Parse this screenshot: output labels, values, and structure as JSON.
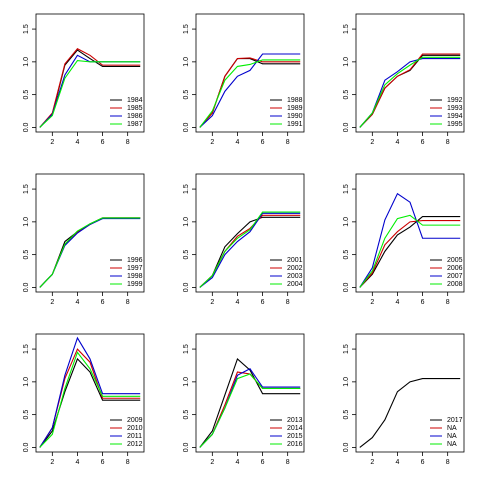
{
  "chart_data": [
    {
      "type": "line",
      "x": [
        1,
        2,
        3,
        4,
        5,
        6,
        7,
        8,
        9
      ],
      "xlim": [
        0.7,
        9.3
      ],
      "xticks": [
        2,
        4,
        6,
        8
      ],
      "ylim": [
        -0.07,
        1.73
      ],
      "yticks": [
        {
          "value": 0,
          "label": "0.0"
        },
        0.5,
        {
          "value": 1,
          "label": "1.0"
        },
        1.5
      ],
      "legend": "bottom-right",
      "series": [
        {
          "name": "1984",
          "color": "#000000",
          "values": [
            0,
            0.2,
            0.95,
            1.18,
            1.05,
            0.93,
            0.93,
            0.93,
            0.93
          ]
        },
        {
          "name": "1985",
          "color": "#cc0000",
          "values": [
            0,
            0.22,
            0.97,
            1.2,
            1.1,
            0.95,
            0.95,
            0.95,
            0.95
          ]
        },
        {
          "name": "1986",
          "color": "#0000cc",
          "values": [
            0,
            0.2,
            0.8,
            1.1,
            1.0,
            1.0,
            1.0,
            1.0,
            1.0
          ]
        },
        {
          "name": "1987",
          "color": "#00ee00",
          "values": [
            0,
            0.18,
            0.75,
            1.02,
            1.0,
            1.0,
            1.0,
            1.0,
            1.0
          ]
        }
      ]
    },
    {
      "type": "line",
      "x": [
        1,
        2,
        3,
        4,
        5,
        6,
        7,
        8,
        9
      ],
      "xlim": [
        0.7,
        9.3
      ],
      "xticks": [
        2,
        4,
        6,
        8
      ],
      "ylim": [
        -0.07,
        1.73
      ],
      "yticks": [
        {
          "value": 0,
          "label": "0.0"
        },
        0.5,
        {
          "value": 1,
          "label": "1.0"
        },
        1.5
      ],
      "legend": "bottom-right",
      "series": [
        {
          "name": "1988",
          "color": "#000000",
          "values": [
            0,
            0.22,
            0.78,
            1.05,
            1.05,
            0.97,
            0.97,
            0.97,
            0.97
          ]
        },
        {
          "name": "1989",
          "color": "#cc0000",
          "values": [
            0,
            0.22,
            0.78,
            1.05,
            1.06,
            1.0,
            1.0,
            1.0,
            1.0
          ]
        },
        {
          "name": "1990",
          "color": "#0000cc",
          "values": [
            0,
            0.18,
            0.55,
            0.78,
            0.87,
            1.12,
            1.12,
            1.12,
            1.12
          ]
        },
        {
          "name": "1991",
          "color": "#00ee00",
          "values": [
            0,
            0.25,
            0.72,
            0.93,
            0.96,
            1.03,
            1.03,
            1.03,
            1.03
          ]
        }
      ]
    },
    {
      "type": "line",
      "x": [
        1,
        2,
        3,
        4,
        5,
        6,
        7,
        8,
        9
      ],
      "xlim": [
        0.7,
        9.3
      ],
      "xticks": [
        2,
        4,
        6,
        8
      ],
      "ylim": [
        -0.07,
        1.73
      ],
      "yticks": [
        {
          "value": 0,
          "label": "0.0"
        },
        0.5,
        {
          "value": 1,
          "label": "1.0"
        },
        1.5
      ],
      "legend": "bottom-right",
      "series": [
        {
          "name": "1992",
          "color": "#000000",
          "values": [
            0,
            0.2,
            0.6,
            0.78,
            0.87,
            1.1,
            1.1,
            1.1,
            1.1
          ]
        },
        {
          "name": "1993",
          "color": "#cc0000",
          "values": [
            0,
            0.2,
            0.6,
            0.78,
            0.88,
            1.12,
            1.12,
            1.12,
            1.12
          ]
        },
        {
          "name": "1994",
          "color": "#0000cc",
          "values": [
            0,
            0.22,
            0.72,
            0.85,
            1.0,
            1.05,
            1.05,
            1.05,
            1.05
          ]
        },
        {
          "name": "1995",
          "color": "#00ee00",
          "values": [
            0,
            0.22,
            0.65,
            0.82,
            0.95,
            1.07,
            1.07,
            1.07,
            1.07
          ]
        }
      ]
    },
    {
      "type": "line",
      "x": [
        1,
        2,
        3,
        4,
        5,
        6,
        7,
        8,
        9
      ],
      "xlim": [
        0.7,
        9.3
      ],
      "xticks": [
        2,
        4,
        6,
        8
      ],
      "ylim": [
        -0.07,
        1.73
      ],
      "yticks": [
        {
          "value": 0,
          "label": "0.0"
        },
        0.5,
        {
          "value": 1,
          "label": "1.0"
        },
        1.5
      ],
      "legend": "bottom-right",
      "series": [
        {
          "name": "1996",
          "color": "#000000",
          "values": [
            0,
            0.2,
            0.7,
            0.85,
            0.97,
            1.06,
            1.06,
            1.06,
            1.06
          ]
        },
        {
          "name": "1997",
          "color": "#cc0000",
          "values": [
            0,
            0.2,
            0.66,
            0.84,
            0.96,
            1.06,
            1.06,
            1.06,
            1.06
          ]
        },
        {
          "name": "1998",
          "color": "#0000cc",
          "values": [
            0,
            0.2,
            0.64,
            0.83,
            0.96,
            1.05,
            1.05,
            1.05,
            1.05
          ]
        },
        {
          "name": "1999",
          "color": "#00ee00",
          "values": [
            0,
            0.2,
            0.66,
            0.86,
            0.97,
            1.06,
            1.06,
            1.06,
            1.06
          ]
        }
      ]
    },
    {
      "type": "line",
      "x": [
        1,
        2,
        3,
        4,
        5,
        6,
        7,
        8,
        9
      ],
      "xlim": [
        0.7,
        9.3
      ],
      "xticks": [
        2,
        4,
        6,
        8
      ],
      "ylim": [
        -0.07,
        1.73
      ],
      "yticks": [
        {
          "value": 0,
          "label": "0.0"
        },
        0.5,
        {
          "value": 1,
          "label": "1.0"
        },
        1.5
      ],
      "legend": "bottom-right",
      "series": [
        {
          "name": "2001",
          "color": "#000000",
          "values": [
            0,
            0.18,
            0.62,
            0.82,
            1.0,
            1.07,
            1.07,
            1.07,
            1.07
          ]
        },
        {
          "name": "2002",
          "color": "#cc0000",
          "values": [
            0,
            0.18,
            0.55,
            0.78,
            0.9,
            1.1,
            1.1,
            1.1,
            1.1
          ]
        },
        {
          "name": "2003",
          "color": "#0000cc",
          "values": [
            0,
            0.15,
            0.5,
            0.7,
            0.85,
            1.13,
            1.13,
            1.13,
            1.13
          ]
        },
        {
          "name": "2004",
          "color": "#00ee00",
          "values": [
            0,
            0.18,
            0.55,
            0.75,
            0.88,
            1.15,
            1.15,
            1.15,
            1.15
          ]
        }
      ]
    },
    {
      "type": "line",
      "x": [
        1,
        2,
        3,
        4,
        5,
        6,
        7,
        8,
        9
      ],
      "xlim": [
        0.7,
        9.3
      ],
      "xticks": [
        2,
        4,
        6,
        8
      ],
      "ylim": [
        -0.07,
        1.73
      ],
      "yticks": [
        {
          "value": 0,
          "label": "0.0"
        },
        0.5,
        {
          "value": 1,
          "label": "1.0"
        },
        1.5
      ],
      "legend": "bottom-right",
      "series": [
        {
          "name": "2005",
          "color": "#000000",
          "values": [
            0,
            0.2,
            0.55,
            0.8,
            0.92,
            1.08,
            1.08,
            1.08,
            1.08
          ]
        },
        {
          "name": "2006",
          "color": "#cc0000",
          "values": [
            0,
            0.22,
            0.65,
            0.85,
            1.0,
            1.02,
            1.02,
            1.02,
            1.02
          ]
        },
        {
          "name": "2007",
          "color": "#0000cc",
          "values": [
            0,
            0.3,
            1.03,
            1.43,
            1.3,
            0.75,
            0.75,
            0.75,
            0.75
          ]
        },
        {
          "name": "2008",
          "color": "#00ee00",
          "values": [
            0,
            0.25,
            0.75,
            1.05,
            1.1,
            0.95,
            0.95,
            0.95,
            0.95
          ]
        }
      ]
    },
    {
      "type": "line",
      "x": [
        1,
        2,
        3,
        4,
        5,
        6,
        7,
        8,
        9
      ],
      "xlim": [
        0.7,
        9.3
      ],
      "xticks": [
        2,
        4,
        6,
        8
      ],
      "ylim": [
        -0.07,
        1.73
      ],
      "yticks": [
        {
          "value": 0,
          "label": "0.0"
        },
        0.5,
        {
          "value": 1,
          "label": "1.0"
        },
        1.5
      ],
      "legend": "bottom-right",
      "series": [
        {
          "name": "2009",
          "color": "#000000",
          "values": [
            0,
            0.25,
            0.85,
            1.35,
            1.15,
            0.72,
            0.72,
            0.72,
            0.72
          ]
        },
        {
          "name": "2010",
          "color": "#cc0000",
          "values": [
            0,
            0.3,
            1.05,
            1.5,
            1.3,
            0.75,
            0.75,
            0.75,
            0.75
          ]
        },
        {
          "name": "2011",
          "color": "#0000cc",
          "values": [
            0,
            0.3,
            1.1,
            1.67,
            1.35,
            0.82,
            0.82,
            0.82,
            0.82
          ]
        },
        {
          "name": "2012",
          "color": "#00ee00",
          "values": [
            0,
            0.2,
            0.9,
            1.45,
            1.2,
            0.78,
            0.78,
            0.78,
            0.78
          ]
        }
      ]
    },
    {
      "type": "line",
      "x": [
        1,
        2,
        3,
        4,
        5,
        6,
        7,
        8,
        9
      ],
      "xlim": [
        0.7,
        9.3
      ],
      "xticks": [
        2,
        4,
        6,
        8
      ],
      "ylim": [
        -0.07,
        1.73
      ],
      "yticks": [
        {
          "value": 0,
          "label": "0.0"
        },
        0.5,
        {
          "value": 1,
          "label": "1.0"
        },
        1.5
      ],
      "legend": "bottom-right",
      "series": [
        {
          "name": "2013",
          "color": "#000000",
          "values": [
            0,
            0.25,
            0.8,
            1.35,
            1.18,
            0.82,
            0.82,
            0.82,
            0.82
          ]
        },
        {
          "name": "2014",
          "color": "#cc0000",
          "values": [
            0,
            0.2,
            0.65,
            1.15,
            1.12,
            0.9,
            0.9,
            0.9,
            0.9
          ]
        },
        {
          "name": "2015",
          "color": "#0000cc",
          "values": [
            0,
            0.2,
            0.6,
            1.1,
            1.2,
            0.92,
            0.92,
            0.92,
            0.92
          ]
        },
        {
          "name": "2016",
          "color": "#00ee00",
          "values": [
            0,
            0.2,
            0.6,
            1.05,
            1.12,
            0.9,
            0.9,
            0.9,
            0.9
          ]
        }
      ]
    },
    {
      "type": "line",
      "x": [
        1,
        2,
        3,
        4,
        5,
        6,
        7,
        8,
        9
      ],
      "xlim": [
        0.7,
        9.3
      ],
      "xticks": [
        2,
        4,
        6,
        8
      ],
      "ylim": [
        -0.07,
        1.73
      ],
      "yticks": [
        {
          "value": 0,
          "label": "0.0"
        },
        0.5,
        {
          "value": 1,
          "label": "1.0"
        },
        1.5
      ],
      "legend": "bottom-right",
      "series": [
        {
          "name": "2017",
          "color": "#000000",
          "values": [
            0,
            0.15,
            0.42,
            0.85,
            1.0,
            1.05,
            1.05,
            1.05,
            1.05
          ]
        },
        {
          "name": "NA",
          "color": "#cc0000",
          "values": [
            null,
            null,
            null,
            null,
            null,
            null,
            null,
            null,
            null
          ]
        },
        {
          "name": "NA",
          "color": "#0000cc",
          "values": [
            null,
            null,
            null,
            null,
            null,
            null,
            null,
            null,
            null
          ]
        },
        {
          "name": "NA",
          "color": "#00ee00",
          "values": [
            null,
            null,
            null,
            null,
            null,
            null,
            null,
            null,
            null
          ]
        }
      ]
    }
  ]
}
